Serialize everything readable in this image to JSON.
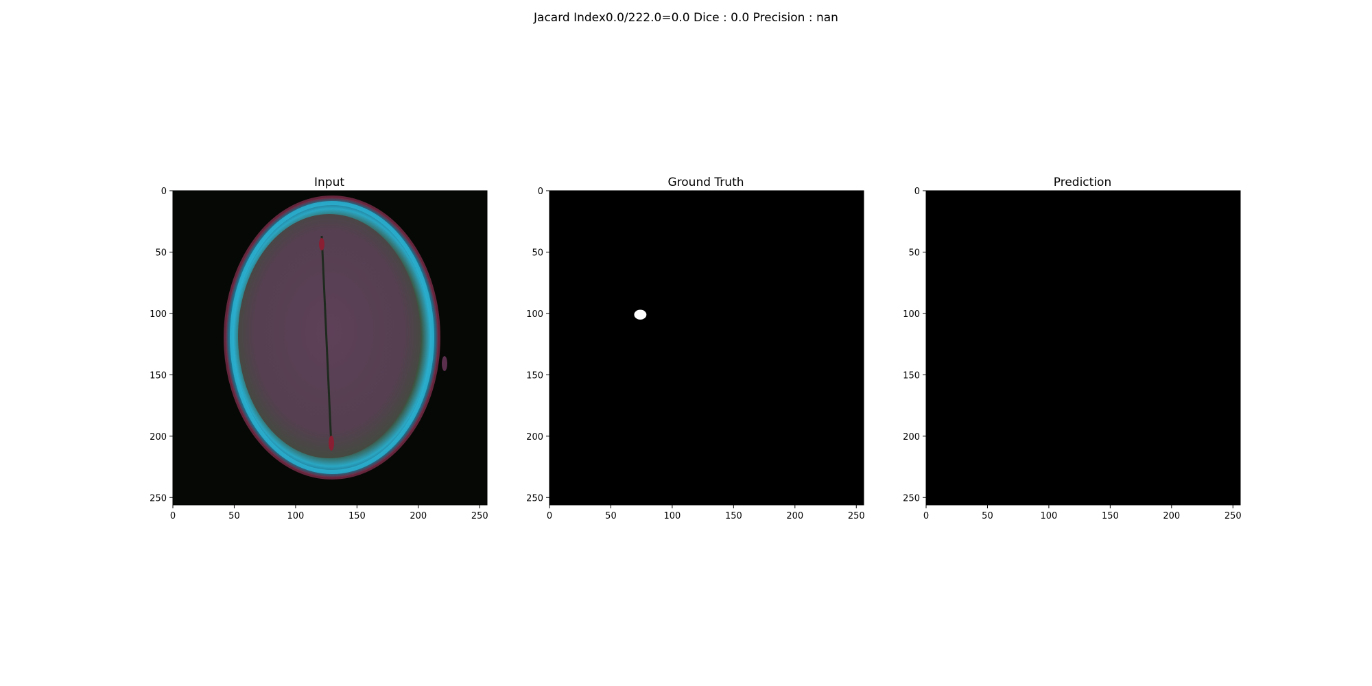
{
  "figure": {
    "suptitle": "Jacard Index0.0/222.0=0.0 Dice : 0.0 Precision : nan"
  },
  "chart_data": [
    {
      "type": "image",
      "title": "Input",
      "xlim": [
        0,
        256
      ],
      "ylim": [
        256,
        0
      ],
      "xticks": [
        0,
        50,
        100,
        150,
        200,
        250
      ],
      "yticks": [
        0,
        50,
        100,
        150,
        200,
        250
      ],
      "content": "axial brain MRI slice"
    },
    {
      "type": "image",
      "title": "Ground Truth",
      "xlim": [
        0,
        256
      ],
      "ylim": [
        256,
        0
      ],
      "xticks": [
        0,
        50,
        100,
        150,
        200,
        250
      ],
      "yticks": [
        0,
        50,
        100,
        150,
        200,
        250
      ],
      "content": "binary mask",
      "blobs": [
        {
          "x": 74,
          "y": 101,
          "rx": 5,
          "ry": 4
        }
      ]
    },
    {
      "type": "image",
      "title": "Prediction",
      "xlim": [
        0,
        256
      ],
      "ylim": [
        256,
        0
      ],
      "xticks": [
        0,
        50,
        100,
        150,
        200,
        250
      ],
      "yticks": [
        0,
        50,
        100,
        150,
        200,
        250
      ],
      "content": "binary mask (empty)"
    }
  ]
}
